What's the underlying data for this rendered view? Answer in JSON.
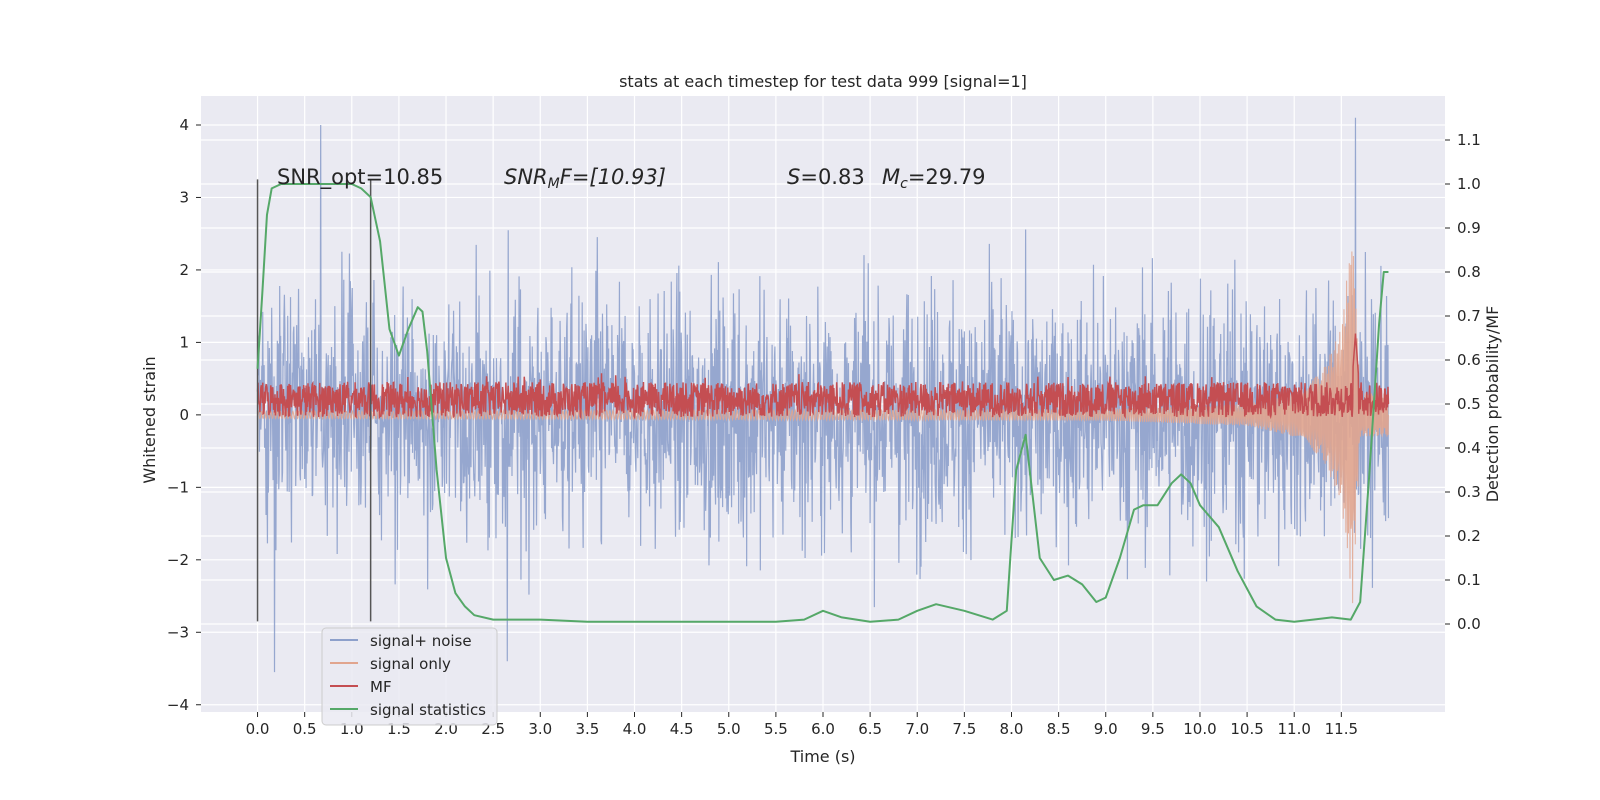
{
  "chart_data": {
    "type": "line",
    "title": "stats at each timestep for test data 999 [signal=1]",
    "xlabel": "Time (s)",
    "ylabel_left": "Whitened strain",
    "ylabel_right": "Detection probability/MF",
    "xlim": [
      -0.6,
      12.6
    ],
    "ylim_left": [
      -4.1,
      4.4
    ],
    "ylim_right": [
      -0.2,
      1.2
    ],
    "xticks": [
      "0.0",
      "0.5",
      "1.0",
      "1.5",
      "2.0",
      "2.5",
      "3.0",
      "3.5",
      "4.0",
      "4.5",
      "5.0",
      "5.5",
      "6.0",
      "6.5",
      "7.0",
      "7.5",
      "8.0",
      "8.5",
      "9.0",
      "9.5",
      "10.0",
      "10.5",
      "11.0",
      "11.5"
    ],
    "yticks_left": [
      "4",
      "3",
      "2",
      "1",
      "0",
      "−1",
      "−2",
      "−3",
      "−4"
    ],
    "yticks_right": [
      "1.1",
      "1.0",
      "0.9",
      "0.8",
      "0.7",
      "0.6",
      "0.5",
      "0.4",
      "0.3",
      "0.2",
      "0.1",
      "0.0"
    ],
    "grid": true,
    "legend_placement": "lower-left",
    "annotations": {
      "snr_opt": "SNR_opt=10.85",
      "snr_mf_var": "SNR",
      "snr_mf_sub": "M",
      "snr_mf_rest": "F=[10.93]",
      "s_var": "S",
      "s_rest": "=0.83",
      "mc_var": "M",
      "mc_sub": "c",
      "mc_rest": "=29.79"
    },
    "vertical_markers": [
      0.0,
      1.2
    ],
    "series": [
      {
        "name": "signal+ noise",
        "color": "#8da0cb",
        "axis": "left",
        "description_values": {
          "t_start": 0.0,
          "t_end": 12.0,
          "typical_range": [
            -2.2,
            2.2
          ],
          "peaks": [
            [
              0.67,
              4.0
            ],
            [
              11.65,
              4.1
            ],
            [
              0.18,
              -3.55
            ],
            [
              2.65,
              -3.4
            ]
          ]
        }
      },
      {
        "name": "signal only",
        "color": "#e1a58e",
        "axis": "left",
        "description_values": {
          "t_start": 0.0,
          "t_end": 12.0,
          "envelope": [
            [
              0.0,
              0.05
            ],
            [
              9.0,
              0.08
            ],
            [
              10.5,
              0.15
            ],
            [
              11.0,
              0.3
            ],
            [
              11.3,
              0.6
            ],
            [
              11.5,
              1.2
            ],
            [
              11.62,
              2.6
            ],
            [
              11.7,
              0.3
            ]
          ]
        }
      },
      {
        "name": "MF",
        "color": "#c44e52",
        "axis": "right",
        "description_values": {
          "t_start": 0.0,
          "t_end": 12.0,
          "baseline": 0.5,
          "band": [
            0.47,
            0.55
          ],
          "peak": [
            11.65,
            0.66
          ]
        }
      },
      {
        "name": "signal statistics",
        "color": "#55a868",
        "axis": "right",
        "t": [
          0.0,
          0.05,
          0.1,
          0.15,
          0.25,
          0.4,
          0.6,
          0.8,
          1.0,
          1.1,
          1.2,
          1.3,
          1.4,
          1.5,
          1.6,
          1.7,
          1.75,
          1.8,
          1.9,
          2.0,
          2.1,
          2.2,
          2.3,
          2.5,
          2.7,
          3.0,
          3.5,
          4.0,
          4.5,
          5.0,
          5.5,
          5.8,
          6.0,
          6.2,
          6.5,
          6.8,
          7.0,
          7.2,
          7.5,
          7.8,
          7.95,
          8.05,
          8.15,
          8.3,
          8.45,
          8.6,
          8.75,
          8.9,
          9.0,
          9.15,
          9.3,
          9.4,
          9.55,
          9.7,
          9.8,
          9.9,
          10.0,
          10.2,
          10.4,
          10.6,
          10.8,
          11.0,
          11.2,
          11.4,
          11.6,
          11.7,
          11.8,
          11.9,
          11.95,
          12.0
        ],
        "values": [
          0.58,
          0.75,
          0.93,
          0.99,
          1.0,
          1.0,
          1.0,
          1.0,
          1.0,
          0.99,
          0.97,
          0.87,
          0.67,
          0.61,
          0.67,
          0.72,
          0.71,
          0.62,
          0.35,
          0.15,
          0.07,
          0.04,
          0.02,
          0.01,
          0.01,
          0.01,
          0.005,
          0.005,
          0.005,
          0.005,
          0.005,
          0.01,
          0.03,
          0.015,
          0.005,
          0.01,
          0.03,
          0.045,
          0.03,
          0.01,
          0.03,
          0.35,
          0.43,
          0.15,
          0.1,
          0.11,
          0.09,
          0.05,
          0.06,
          0.15,
          0.26,
          0.27,
          0.27,
          0.32,
          0.34,
          0.32,
          0.27,
          0.22,
          0.12,
          0.04,
          0.01,
          0.005,
          0.01,
          0.015,
          0.01,
          0.05,
          0.35,
          0.68,
          0.8,
          0.8
        ]
      }
    ]
  }
}
